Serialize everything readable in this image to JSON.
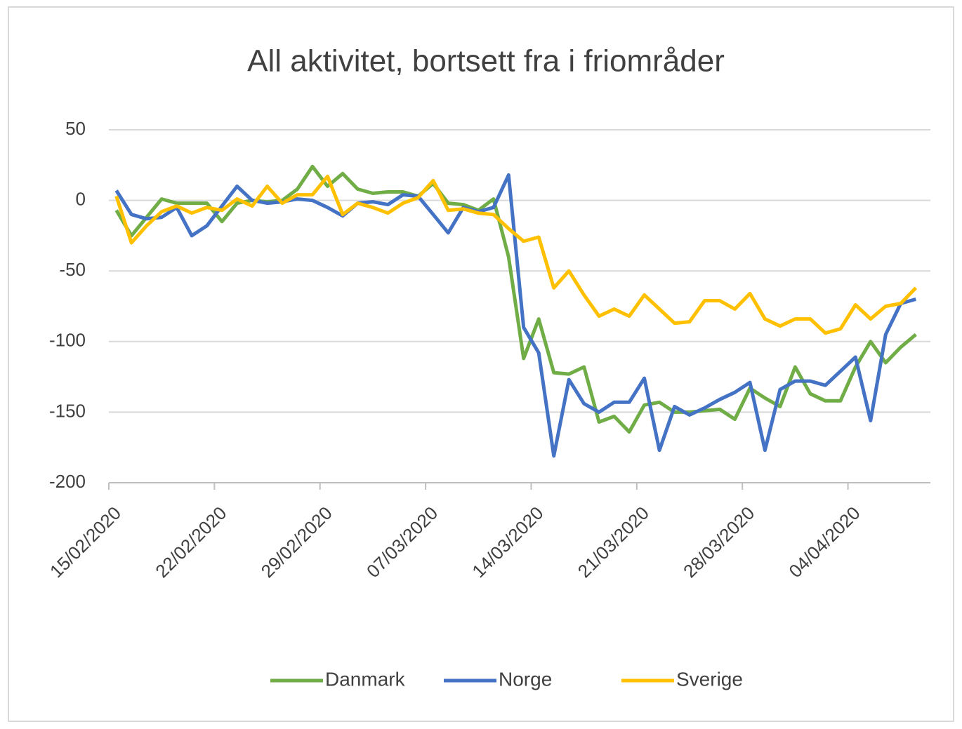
{
  "chart_data": {
    "type": "line",
    "title": "All aktivitet, bortsett fra i friområder",
    "categories": [
      "15/02/2020",
      null,
      null,
      null,
      null,
      null,
      null,
      "22/02/2020",
      null,
      null,
      null,
      null,
      null,
      null,
      "29/02/2020",
      null,
      null,
      null,
      null,
      null,
      null,
      "07/03/2020",
      null,
      null,
      null,
      null,
      null,
      null,
      "14/03/2020",
      null,
      null,
      null,
      null,
      null,
      null,
      "21/03/2020",
      null,
      null,
      null,
      null,
      null,
      null,
      "28/03/2020",
      null,
      null,
      null,
      null,
      null,
      null,
      "04/04/2020",
      null,
      null,
      null,
      null
    ],
    "series": [
      {
        "name": "Danmark",
        "color": "#70ad47",
        "values": [
          -7,
          -25,
          -12,
          1,
          -2,
          -2,
          -2,
          -15,
          -2,
          0,
          -1,
          0,
          8,
          24,
          10,
          19,
          8,
          5,
          6,
          6,
          3,
          12,
          -2,
          -3,
          -7,
          1,
          -40,
          -112,
          -84,
          -122,
          -123,
          -118,
          -157,
          -153,
          -164,
          -145,
          -143,
          -150,
          -150,
          -149,
          -148,
          -155,
          -133,
          -140,
          -146,
          -118,
          -137,
          -142,
          -142,
          -118,
          -100,
          -115,
          -104,
          -95
        ]
      },
      {
        "name": "Norge",
        "color": "#4472c4",
        "values": [
          7,
          -10,
          -13,
          -12,
          -5,
          -25,
          -18,
          -4,
          10,
          0,
          -2,
          -1,
          1,
          0,
          -5,
          -11,
          -2,
          -1,
          -3,
          4,
          3,
          -10,
          -23,
          -5,
          -8,
          -5,
          18,
          -90,
          -108,
          -181,
          -127,
          -144,
          -150,
          -143,
          -143,
          -126,
          -177,
          -146,
          -152,
          -147,
          -141,
          -136,
          -129,
          -177,
          -134,
          -128,
          -128,
          -131,
          -121,
          -111,
          -156,
          -95,
          -73,
          -70
        ]
      },
      {
        "name": "Sverige",
        "color": "#ffc000",
        "values": [
          3,
          -30,
          -18,
          -8,
          -4,
          -9,
          -5,
          -7,
          1,
          -4,
          10,
          -2,
          4,
          4,
          17,
          -10,
          -2,
          -5,
          -9,
          -2,
          2,
          14,
          -7,
          -6,
          -9,
          -10,
          -20,
          -29,
          -26,
          -62,
          -50,
          -67,
          -82,
          -77,
          -82,
          -67,
          -77,
          -87,
          -86,
          -71,
          -71,
          -77,
          -66,
          -84,
          -89,
          -84,
          -84,
          -94,
          -91,
          -74,
          -84,
          -75,
          -73,
          -62
        ]
      }
    ],
    "ylim": [
      -200,
      50
    ],
    "yticks": [
      -200,
      -150,
      -100,
      -50,
      0,
      50
    ],
    "grid": true,
    "legend": "bottom"
  }
}
